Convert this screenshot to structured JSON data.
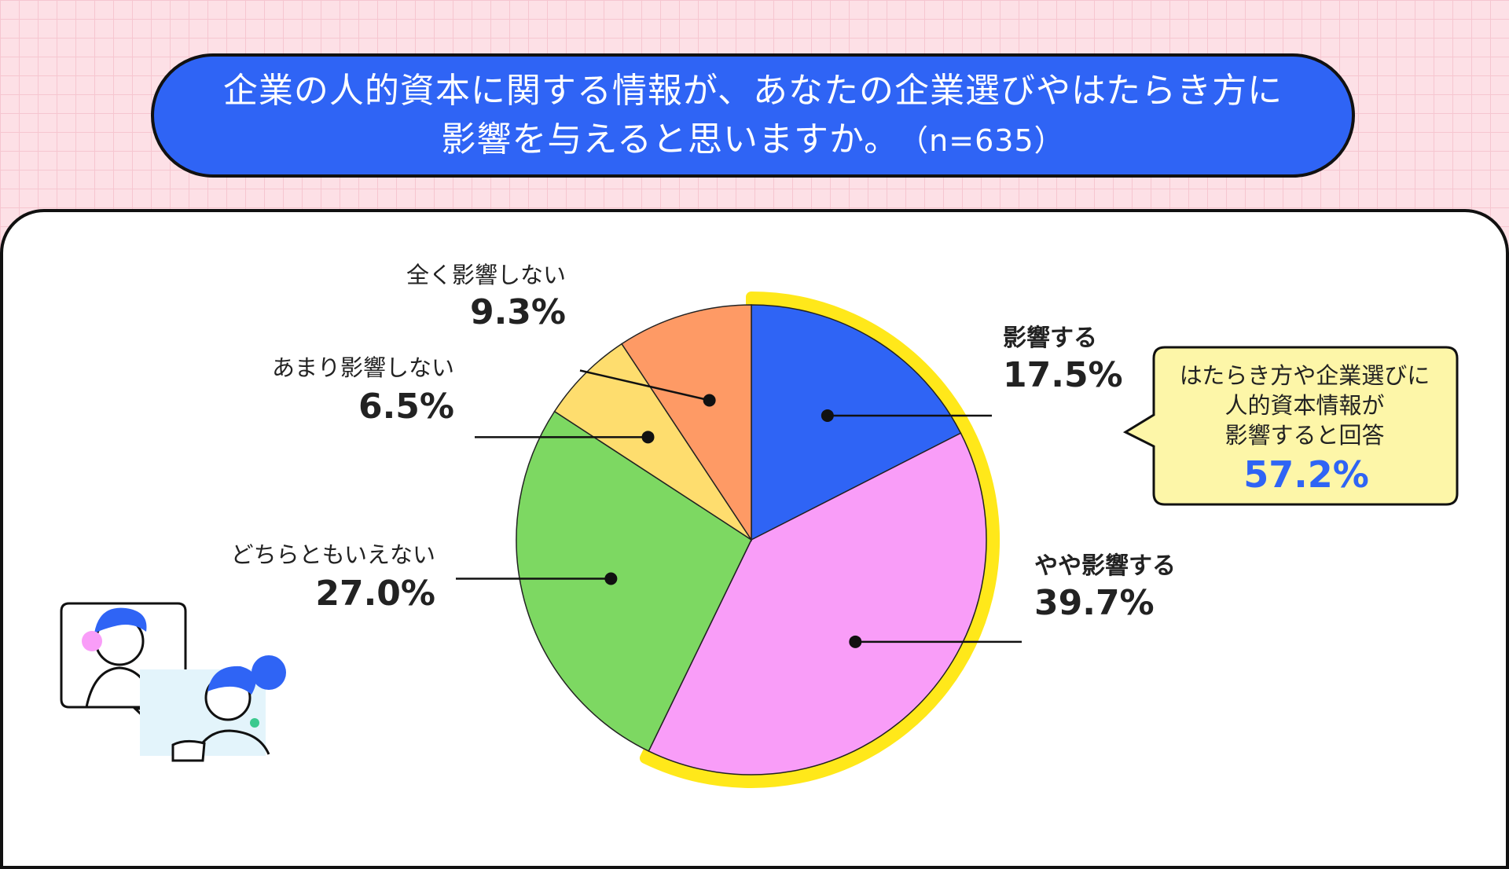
{
  "title": {
    "line1": "企業の人的資本に関する情報が、あなたの企業選びやはたらき方に",
    "line2": "影響を与えると思いますか。",
    "sample": "（n=635）"
  },
  "chart_data": {
    "type": "pie",
    "unit": "%",
    "slices": [
      {
        "label": "影響する",
        "value": 17.5,
        "value_label": "17.5%",
        "color": "#2f64f5",
        "highlight": true
      },
      {
        "label": "やや影響する",
        "value": 39.7,
        "value_label": "39.7%",
        "color": "#f99df8",
        "highlight": true
      },
      {
        "label": "どちらともいえない",
        "value": 27.0,
        "value_label": "27.0%",
        "color": "#7dd862",
        "highlight": false
      },
      {
        "label": "あまり影響しない",
        "value": 6.5,
        "value_label": "6.5%",
        "color": "#fedd6e",
        "highlight": false
      },
      {
        "label": "全く影響しない",
        "value": 9.3,
        "value_label": "9.3%",
        "color": "#fe9a65",
        "highlight": false
      }
    ],
    "highlight_color": "#ffe81a",
    "annotation": {
      "lines": [
        "はたらき方や企業選びに",
        "人的資本情報が",
        "影響すると回答"
      ],
      "value": "57.2%",
      "background": "#fdf6a8"
    }
  },
  "illustration": {
    "name": "online-meeting-illustration",
    "accent": "#2f64f5"
  }
}
